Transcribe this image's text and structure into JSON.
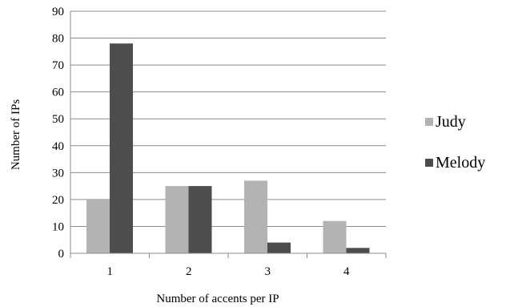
{
  "chart_data": {
    "type": "bar",
    "categories": [
      "1",
      "2",
      "3",
      "4"
    ],
    "series": [
      {
        "name": "Judy",
        "values": [
          20,
          25,
          27,
          12
        ],
        "color": "#b3b3b3"
      },
      {
        "name": "Melody",
        "values": [
          78,
          25,
          4,
          2
        ],
        "color": "#4d4d4d"
      }
    ],
    "xlabel": "Number of accents per IP",
    "ylabel": "Number of IPs",
    "ylim": [
      0,
      90
    ],
    "yticks": [
      0,
      10,
      20,
      30,
      40,
      50,
      60,
      70,
      80,
      90
    ],
    "grid": true,
    "legend_position": "right"
  }
}
